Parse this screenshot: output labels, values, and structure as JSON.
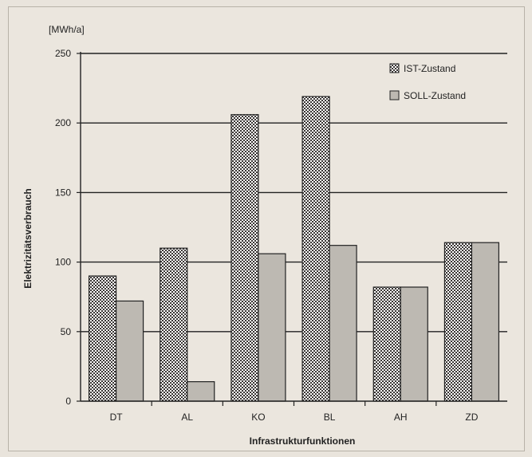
{
  "chart_data": {
    "type": "bar",
    "unit_label": "[MWh/a]",
    "xlabel": "Infrastrukturfunktionen",
    "ylabel": "Elektrizitätsverbrauch",
    "ylim": [
      0,
      250
    ],
    "yticks": [
      0,
      50,
      100,
      150,
      200,
      250
    ],
    "categories": [
      "DT",
      "AL",
      "KO",
      "BL",
      "AH",
      "ZD"
    ],
    "series": [
      {
        "name": "IST-Zustand",
        "values": [
          90,
          110,
          206,
          219,
          82,
          114
        ],
        "pattern": "checkered"
      },
      {
        "name": "SOLL-Zustand",
        "values": [
          72,
          14,
          106,
          112,
          82,
          114
        ],
        "pattern": "light"
      }
    ],
    "grid": true,
    "legend_position": "top-right",
    "colors": {
      "ist": "#7a7470",
      "soll": "#bdb9b2",
      "grid": "#222222",
      "background": "#ebe6de"
    }
  }
}
